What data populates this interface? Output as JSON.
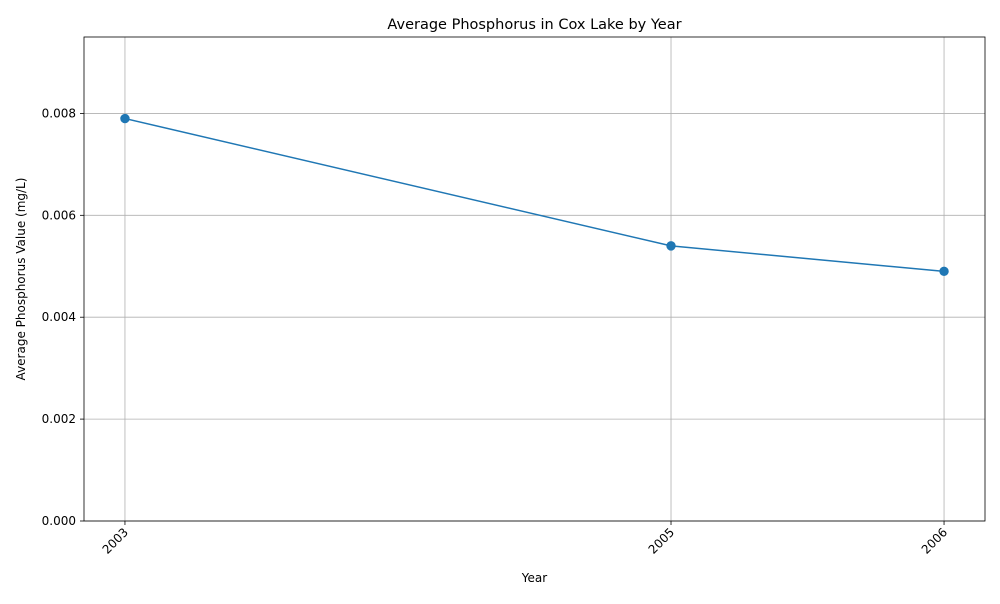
{
  "chart_data": {
    "type": "line",
    "title": "Average Phosphorus in Cox Lake by Year",
    "xlabel": "Year",
    "ylabel": "Average Phosphorus Value (mg/L)",
    "x": [
      2003,
      2005,
      2006
    ],
    "xticks": [
      "2003",
      "2005",
      "2006"
    ],
    "series": [
      {
        "values": [
          0.0079,
          0.0054,
          0.0049
        ],
        "color": "#1f77b4",
        "marker": "circle"
      }
    ],
    "yticks": [
      0.0,
      0.002,
      0.004,
      0.006,
      0.008
    ],
    "ytick_labels": [
      "0.000",
      "0.002",
      "0.004",
      "0.006",
      "0.008"
    ],
    "xlim": [
      2002.85,
      2006.15
    ],
    "ylim": [
      0,
      0.0095
    ],
    "grid": true,
    "legend": "none"
  }
}
